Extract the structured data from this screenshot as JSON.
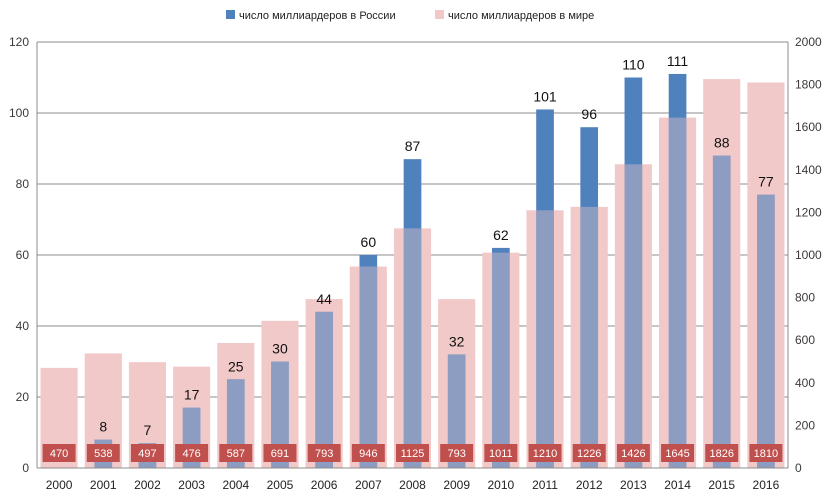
{
  "chart_data": {
    "type": "bar",
    "title": "",
    "categories": [
      "2000",
      "2001",
      "2002",
      "2003",
      "2004",
      "2005",
      "2006",
      "2007",
      "2008",
      "2009",
      "2010",
      "2011",
      "2012",
      "2013",
      "2014",
      "2015",
      "2016"
    ],
    "series": [
      {
        "name": "число миллиардеров в России",
        "axis": "left",
        "color": "#4f81bd",
        "values": [
          0,
          8,
          7,
          17,
          25,
          30,
          44,
          60,
          87,
          32,
          62,
          101,
          96,
          110,
          111,
          88,
          77
        ]
      },
      {
        "name": "число миллиардеров в мире",
        "axis": "right",
        "color": "#f2c9c9",
        "label_box_color": "#c0504d",
        "values": [
          470,
          538,
          497,
          476,
          587,
          691,
          793,
          946,
          1125,
          793,
          1011,
          1210,
          1226,
          1426,
          1645,
          1826,
          1810
        ]
      }
    ],
    "y_left": {
      "range": [
        0,
        120
      ],
      "ticks": [
        "0",
        "20",
        "40",
        "60",
        "80",
        "100",
        "120"
      ]
    },
    "y_right": {
      "range": [
        0,
        2000
      ],
      "ticks": [
        "0",
        "200",
        "400",
        "600",
        "800",
        "1000",
        "1200",
        "1400",
        "1600",
        "1800",
        "2000"
      ]
    },
    "grid": true,
    "legend_position": "top-center"
  }
}
